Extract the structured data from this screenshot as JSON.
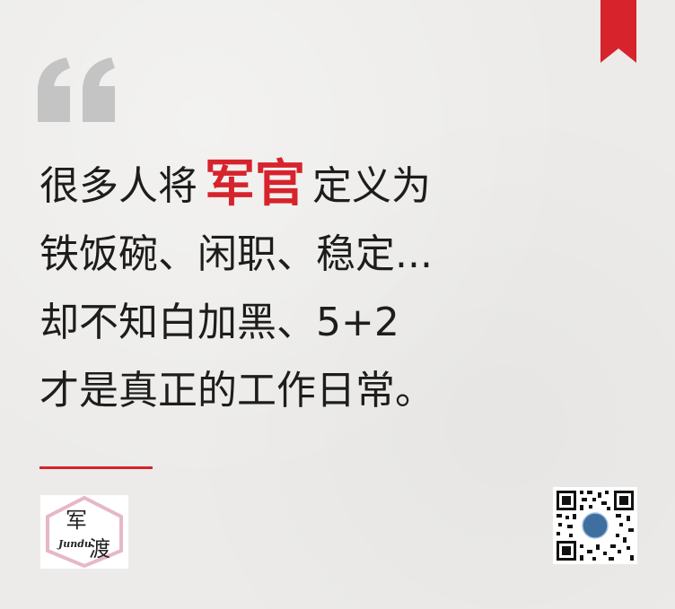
{
  "quote": {
    "line1_before": "很多人将",
    "line1_highlight": "军官",
    "line1_after": "定义为",
    "line2": "铁饭碗、闲职、稳定...",
    "line3": "却不知白加黑、5+2",
    "line4": "才是真正的工作日常。"
  },
  "logo": {
    "char1": "军",
    "char2": "渡",
    "latin": "Jundu"
  },
  "icons": {
    "bookmark": "bookmark-icon",
    "quote_mark": "quote-mark-icon",
    "qr": "qr-code"
  },
  "colors": {
    "accent": "#d6232c",
    "text": "#1d1d1d",
    "quote_mark": "#c4c4c4",
    "background": "#ecebe9"
  }
}
